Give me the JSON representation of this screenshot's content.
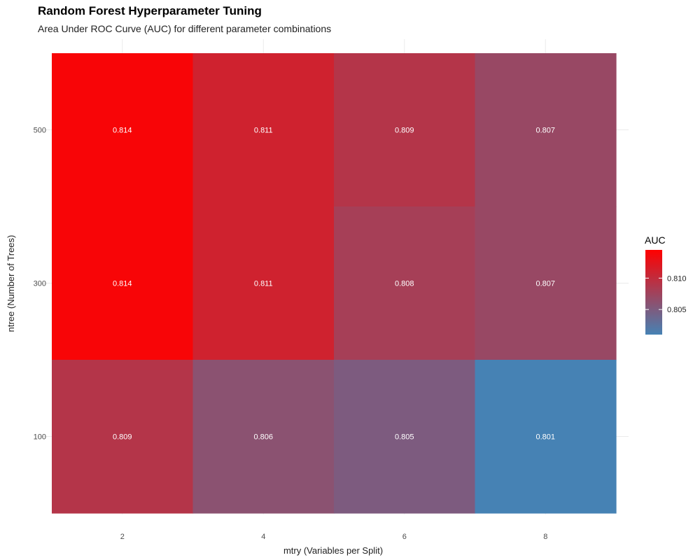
{
  "chart_data": {
    "type": "heatmap",
    "title": "Random Forest Hyperparameter Tuning",
    "subtitle": "Area Under ROC Curve (AUC) for different parameter combinations",
    "xlabel": "mtry (Variables per Split)",
    "ylabel": "ntree (Number of Trees)",
    "x": [
      2,
      4,
      6,
      8
    ],
    "y": [
      100,
      300,
      500
    ],
    "x_tick_labels": [
      "2",
      "4",
      "6",
      "8"
    ],
    "y_tick_labels": [
      "100",
      "300",
      "500"
    ],
    "values": [
      {
        "mtry": 2,
        "ntree": 500,
        "auc": 0.814,
        "label": "0.814"
      },
      {
        "mtry": 4,
        "ntree": 500,
        "auc": 0.811,
        "label": "0.811"
      },
      {
        "mtry": 6,
        "ntree": 500,
        "auc": 0.809,
        "label": "0.809"
      },
      {
        "mtry": 8,
        "ntree": 500,
        "auc": 0.807,
        "label": "0.807"
      },
      {
        "mtry": 2,
        "ntree": 300,
        "auc": 0.814,
        "label": "0.814"
      },
      {
        "mtry": 4,
        "ntree": 300,
        "auc": 0.811,
        "label": "0.811"
      },
      {
        "mtry": 6,
        "ntree": 300,
        "auc": 0.808,
        "label": "0.808"
      },
      {
        "mtry": 8,
        "ntree": 300,
        "auc": 0.807,
        "label": "0.807"
      },
      {
        "mtry": 2,
        "ntree": 100,
        "auc": 0.809,
        "label": "0.809"
      },
      {
        "mtry": 4,
        "ntree": 100,
        "auc": 0.806,
        "label": "0.806"
      },
      {
        "mtry": 6,
        "ntree": 100,
        "auc": 0.805,
        "label": "0.805"
      },
      {
        "mtry": 8,
        "ntree": 100,
        "auc": 0.801,
        "label": "0.801"
      }
    ],
    "color_scale": {
      "low": "#4682b4",
      "high": "#ff0000",
      "min": 0.801,
      "max": 0.8145
    },
    "legend": {
      "title": "AUC",
      "placement": "right",
      "ticks": [
        0.805,
        0.81
      ],
      "tick_labels": [
        "0.805",
        "0.810"
      ]
    },
    "grid": true
  }
}
